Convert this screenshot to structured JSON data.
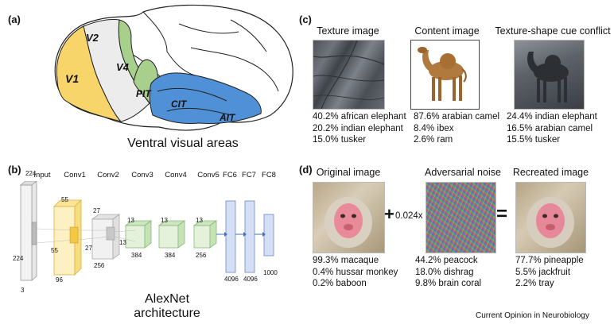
{
  "panel_a": {
    "letter": "(a)",
    "areas": [
      "V1",
      "V2",
      "V4",
      "PIT",
      "CIT",
      "AIT"
    ],
    "caption": "Ventral visual areas",
    "colors": {
      "v1": "#f7d56b",
      "v2": "#ececec",
      "v4": "#a9cf8c",
      "it": "#4f90d6"
    }
  },
  "panel_b": {
    "letter": "(b)",
    "layers": [
      "Input",
      "Conv1",
      "Conv2",
      "Conv3",
      "Conv4",
      "Conv5",
      "FC6",
      "FC7",
      "FC8"
    ],
    "dims": {
      "input_top": "224",
      "input_side": "224",
      "input_depth": "3",
      "conv1_top": "55",
      "conv1_side": "55",
      "conv1_depth": "96",
      "conv2_top": "27",
      "conv2_side": "27",
      "conv2_depth": "256",
      "conv3_top": "13",
      "conv3_side": "13",
      "conv3_depth": "384",
      "conv4_top": "13",
      "conv4_depth": "384",
      "conv5_top": "13",
      "conv5_depth": "256",
      "fc6": "4096",
      "fc7": "4096",
      "fc8": "1000"
    },
    "caption": "AlexNet architecture"
  },
  "panel_c": {
    "letter": "(c)",
    "images": [
      {
        "title": "Texture image",
        "preds": [
          "40.2% african elephant",
          "20.2% indian elephant",
          "15.0% tusker"
        ]
      },
      {
        "title": "Content image",
        "preds": [
          "87.6% arabian camel",
          "8.4% ibex",
          "2.6% ram"
        ]
      },
      {
        "title": "Texture-shape cue conflict",
        "preds": [
          "24.4% indian elephant",
          "16.5% arabian camel",
          "15.5% tusker"
        ]
      }
    ]
  },
  "panel_d": {
    "letter": "(d)",
    "images": [
      {
        "title": "Original image",
        "preds": [
          "99.3% macaque",
          "0.4% hussar monkey",
          "0.2% baboon"
        ]
      },
      {
        "title": "Adversarial noise",
        "preds": [
          "44.2% peacock",
          "18.0% dishrag",
          "9.8% brain coral"
        ]
      },
      {
        "title": "Recreated image",
        "preds": [
          "77.7% pineapple",
          "5.5% jackfruit",
          "2.2% tray"
        ]
      }
    ],
    "plus": "+",
    "factor": "0.024x",
    "equals": "="
  },
  "footer": "Current Opinion in Neurobiology"
}
